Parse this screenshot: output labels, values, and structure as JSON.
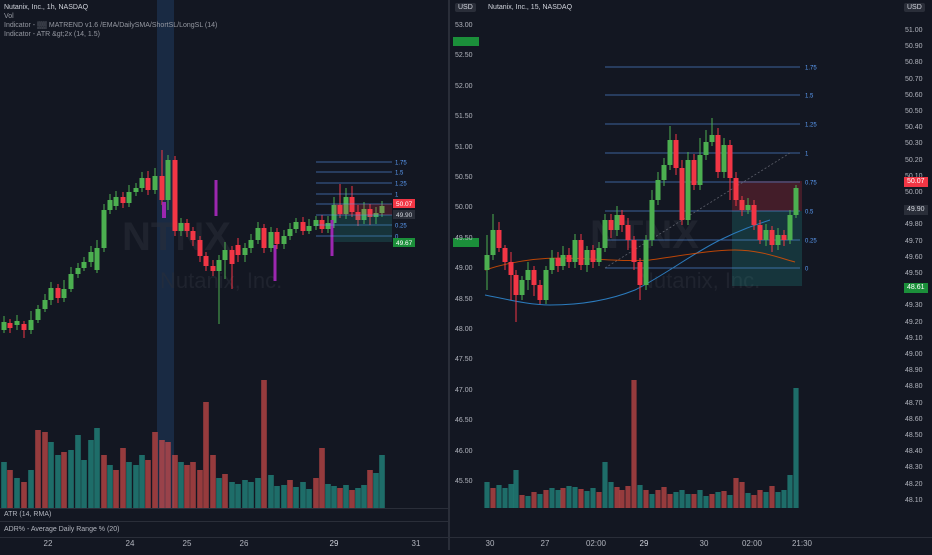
{
  "left": {
    "legend": {
      "title": "Nutanix, Inc., 1h, NASDAQ",
      "vol": "Vol",
      "indicator1": "Indicator - ▒▒ MATREND v1.6 /EMA/DailySMA/ShortSL/LongSL (14)",
      "indicator2": "Indicator - ATR &gt;2x (14, 1.5)"
    },
    "watermark": {
      "ticker": "NTNX",
      "company": "Nutanix, Inc."
    },
    "fib_levels": [
      "1.75",
      "1.5",
      "1.25",
      "1",
      "0.75",
      "0.5",
      "0.25",
      "0"
    ],
    "price_tags": [
      "50.07",
      "49.90",
      "49.67"
    ],
    "panes": {
      "atr": "ATR (14, RMA)",
      "adr": "ADR% - Average Daily Range % (20)"
    },
    "xaxis": [
      "22",
      "24",
      "25",
      "26",
      "29",
      "31"
    ]
  },
  "right": {
    "legend": {
      "title": "Nutanix, Inc., 15, NASDAQ"
    },
    "usd_left": "USD",
    "usd_right": "USD",
    "watermark": {
      "ticker": "NTNX",
      "company": "Nutanix, Inc."
    },
    "left_axis": [
      "53.00",
      "52.50",
      "52.00",
      "51.50",
      "51.00",
      "50.50",
      "50.00",
      "49.50",
      "49.00",
      "48.50",
      "48.00",
      "47.50",
      "47.00",
      "46.50",
      "46.00",
      "45.50"
    ],
    "right_axis": [
      "51.00",
      "50.90",
      "50.80",
      "50.70",
      "50.60",
      "50.50",
      "50.40",
      "50.30",
      "50.20",
      "50.10",
      "50.00",
      "49.90",
      "49.80",
      "49.70",
      "49.60",
      "49.50",
      "49.40",
      "49.30",
      "49.20",
      "49.10",
      "49.00",
      "48.90",
      "48.80",
      "48.70",
      "48.60",
      "48.50",
      "48.40",
      "48.30",
      "48.20",
      "48.10"
    ],
    "fib_levels": [
      "1.75",
      "1.5",
      "1.25",
      "1",
      "0.75",
      "0.5",
      "0.25",
      "0"
    ],
    "price_tags": {
      "current": "49.90",
      "red": "50.07",
      "green_bottom": "48.61"
    },
    "xaxis": [
      "30",
      "27",
      "02:00",
      "29",
      "30",
      "02:00",
      "21:30"
    ]
  },
  "colors": {
    "bull": "#26a69a",
    "bear": "#ef5350",
    "bull_candle": "#4caf50",
    "bear_candle": "#f23645",
    "fib": "#5b9cf6",
    "bg": "#131722"
  }
}
